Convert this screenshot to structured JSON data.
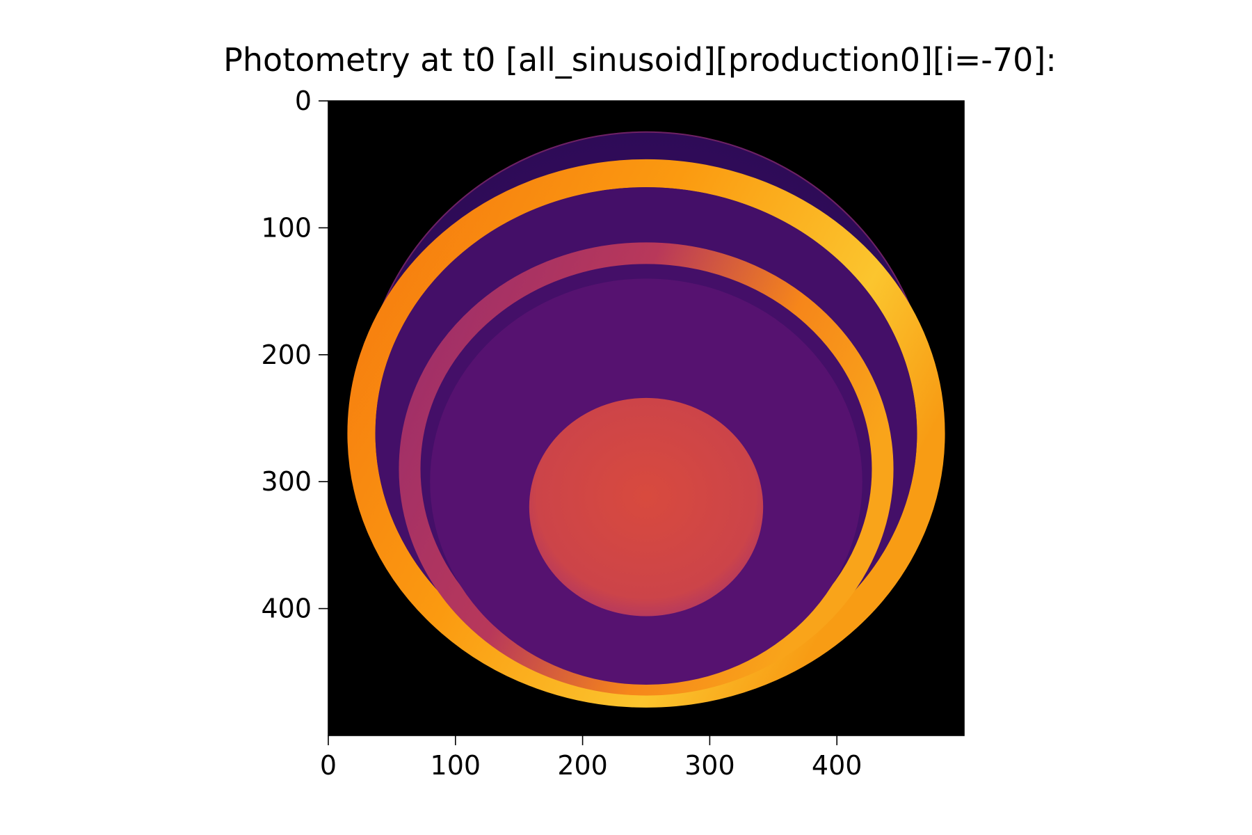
{
  "chart_data": {
    "type": "heatmap",
    "title": "Photometry at t0 [all_sinusoid][production0][i=-70]:",
    "xlabel": "",
    "ylabel": "",
    "colormap": "inferno",
    "background": "#000000",
    "image_size": [
      500,
      500
    ],
    "xlim": [
      0,
      500
    ],
    "ylim": [
      500,
      0
    ],
    "x_ticks": [
      0,
      100,
      200,
      300,
      400
    ],
    "x_tick_labels": [
      "0",
      "100",
      "200",
      "300",
      "400"
    ],
    "y_ticks": [
      0,
      100,
      200,
      300,
      400
    ],
    "y_tick_labels": [
      "0",
      "100",
      "200",
      "300",
      "400"
    ],
    "grid": false,
    "features": [
      {
        "name": "disk",
        "cx": 250,
        "cy": 250,
        "rx": 226,
        "ry": 226,
        "color": "#3a0d62"
      },
      {
        "name": "bright-ring",
        "cx": 250,
        "cy": 262,
        "rx": 224,
        "ry": 205,
        "width": 22,
        "color": "#f88a10",
        "highlight": "#fbd036"
      },
      {
        "name": "inner-ring",
        "cx": 250,
        "cy": 290,
        "rx": 186,
        "ry": 170,
        "width": 17,
        "color": "#a6306a",
        "highlight": "#f0781c"
      },
      {
        "name": "inner-disk",
        "cx": 250,
        "cy": 300,
        "rx": 170,
        "ry": 160,
        "color": "#561270"
      },
      {
        "name": "core",
        "cx": 250,
        "cy": 320,
        "rx": 92,
        "ry": 86,
        "color": "#d24742",
        "edge": "#c53f55"
      }
    ]
  }
}
